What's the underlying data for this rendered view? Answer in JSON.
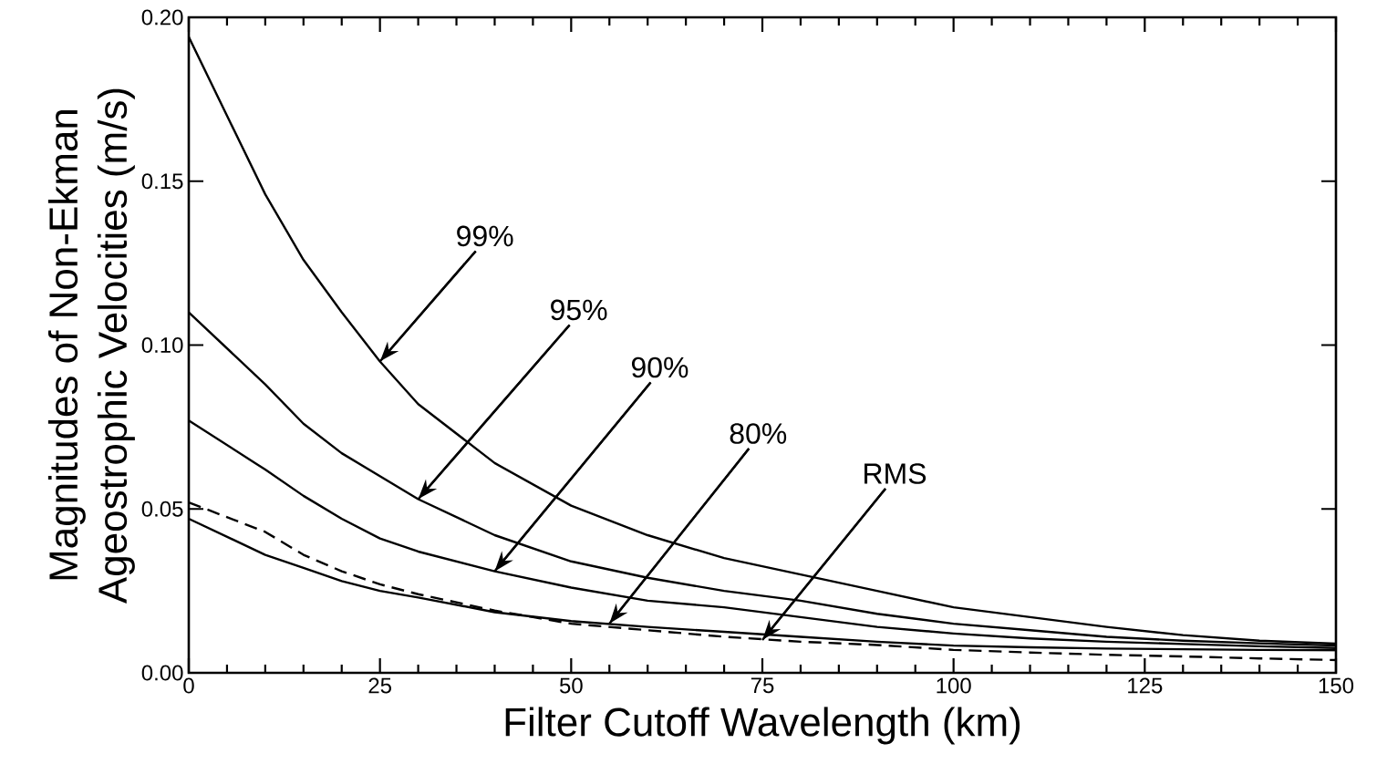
{
  "chart_data": {
    "type": "line",
    "xlabel": "Filter Cutoff Wavelength (km)",
    "ylabel": "Magnitudes of Non-Ekman\nAgeostrophic Velocities (m/s)",
    "x": [
      0,
      10,
      15,
      20,
      25,
      30,
      40,
      50,
      60,
      70,
      80,
      90,
      100,
      110,
      120,
      130,
      140,
      150
    ],
    "series": [
      {
        "color": "#000000",
        "line_style": "solid",
        "values": [
          0.194,
          0.146,
          0.126,
          0.11,
          0.095,
          0.082,
          0.064,
          0.051,
          0.042,
          0.035,
          0.03,
          0.025,
          0.02,
          0.017,
          0.014,
          0.0115,
          0.0098,
          0.0089
        ]
      },
      {
        "color": "#000000",
        "line_style": "solid",
        "values": [
          0.11,
          0.088,
          0.076,
          0.067,
          0.06,
          0.053,
          0.042,
          0.034,
          0.029,
          0.025,
          0.022,
          0.018,
          0.015,
          0.013,
          0.011,
          0.0098,
          0.009,
          0.0083
        ]
      },
      {
        "color": "#000000",
        "line_style": "solid",
        "values": [
          0.077,
          0.062,
          0.054,
          0.047,
          0.041,
          0.037,
          0.031,
          0.026,
          0.022,
          0.02,
          0.017,
          0.014,
          0.012,
          0.0105,
          0.0095,
          0.0088,
          0.0081,
          0.0076
        ]
      },
      {
        "color": "#000000",
        "line_style": "solid",
        "values": [
          0.047,
          0.036,
          0.032,
          0.028,
          0.025,
          0.023,
          0.0185,
          0.0158,
          0.014,
          0.0125,
          0.011,
          0.0095,
          0.0083,
          0.0078,
          0.0074,
          0.0072,
          0.007,
          0.0069
        ]
      },
      {
        "color": "#000000",
        "line_style": "dashed",
        "values": [
          0.052,
          0.043,
          0.036,
          0.031,
          0.027,
          0.024,
          0.019,
          0.015,
          0.013,
          0.011,
          0.0095,
          0.0085,
          0.007,
          0.0062,
          0.0055,
          0.005,
          0.0044,
          0.0039
        ]
      }
    ],
    "xlim": [
      0,
      150
    ],
    "xticks": [
      0,
      25,
      50,
      75,
      100,
      125,
      150
    ],
    "ylim": [
      0,
      0.2
    ],
    "yticks": [
      {
        "value": 0,
        "label": "0.00"
      },
      {
        "value": 0.05,
        "label": "0.05"
      },
      {
        "value": 0.1,
        "label": "0.10"
      },
      {
        "value": 0.15,
        "label": "0.15"
      },
      {
        "value": 0.2,
        "label": "0.20"
      }
    ],
    "grid": false,
    "marker": "none",
    "annotations": [
      {
        "text": "99%",
        "x": 25,
        "y": 0.095
      },
      {
        "text": "95%",
        "x": 30,
        "y": 0.053
      },
      {
        "text": "90%",
        "x": 40,
        "y": 0.031
      },
      {
        "text": "80%",
        "x": 55,
        "y": 0.015
      },
      {
        "text": "RMS",
        "x": 75,
        "y": 0.01
      }
    ]
  }
}
